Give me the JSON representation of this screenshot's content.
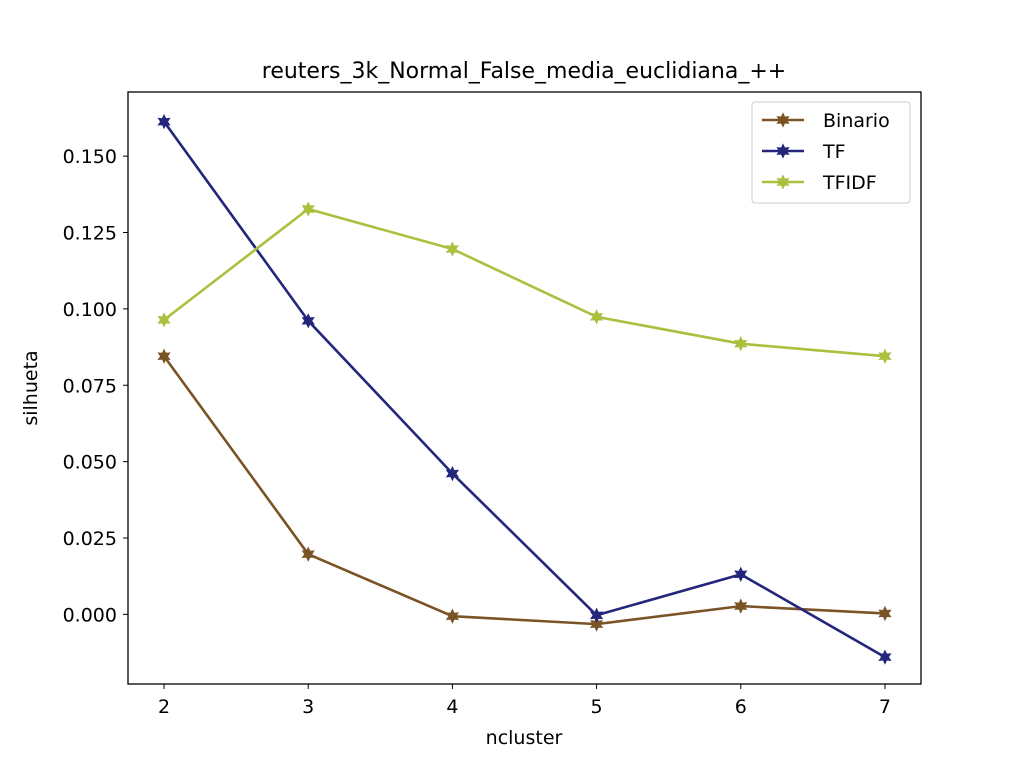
{
  "chart_data": {
    "type": "line",
    "title": "reuters_3k_Normal_False_media_euclidiana_++",
    "xlabel": "ncluster",
    "ylabel": "silhueta",
    "x": [
      2,
      3,
      4,
      5,
      6,
      7
    ],
    "xlim": [
      1.75,
      7.25
    ],
    "ylim": [
      -0.0228,
      0.171
    ],
    "xticks": [
      {
        "value": 2,
        "label": "2"
      },
      {
        "value": 3,
        "label": "3"
      },
      {
        "value": 4,
        "label": "4"
      },
      {
        "value": 5,
        "label": "5"
      },
      {
        "value": 6,
        "label": "6"
      },
      {
        "value": 7,
        "label": "7"
      }
    ],
    "yticks": [
      {
        "value": 0.0,
        "label": "0.000"
      },
      {
        "value": 0.025,
        "label": "0.025"
      },
      {
        "value": 0.05,
        "label": "0.050"
      },
      {
        "value": 0.075,
        "label": "0.075"
      },
      {
        "value": 0.1,
        "label": "0.100"
      },
      {
        "value": 0.125,
        "label": "0.125"
      },
      {
        "value": 0.15,
        "label": "0.150"
      }
    ],
    "grid": false,
    "legend_position": "top-right",
    "marker": "filled-star",
    "series": [
      {
        "name": "Binario",
        "color": "#7a5427",
        "values": [
          0.0845,
          0.0197,
          -0.0006,
          -0.0032,
          0.0027,
          0.0003
        ]
      },
      {
        "name": "TF",
        "color": "#23267a",
        "values": [
          0.1613,
          0.0961,
          0.0461,
          -0.0003,
          0.0131,
          -0.014
        ]
      },
      {
        "name": "TFIDF",
        "color": "#abc03f",
        "values": [
          0.0964,
          0.1327,
          0.1196,
          0.0974,
          0.0886,
          0.0845
        ]
      }
    ]
  }
}
